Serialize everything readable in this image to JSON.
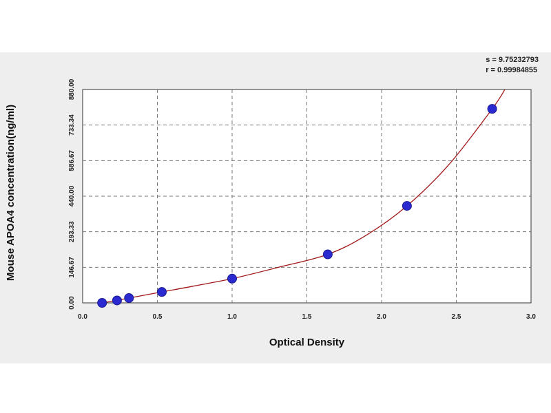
{
  "stats": {
    "s_line": "s = 9.75232793",
    "r_line": "r = 0.99984855"
  },
  "chart_data": {
    "type": "scatter",
    "title": "",
    "xlabel": "Optical Density",
    "ylabel": "Mouse APOA4 concentration(ng/ml)",
    "xlim": [
      0.0,
      3.0
    ],
    "ylim": [
      0.0,
      880.0
    ],
    "x_ticks": [
      0.0,
      0.5,
      1.0,
      1.5,
      2.0,
      2.5,
      3.0
    ],
    "x_tick_labels": [
      "0.0",
      "0.5",
      "1.0",
      "1.5",
      "2.0",
      "2.5",
      "3.0"
    ],
    "y_ticks": [
      0.0,
      146.67,
      293.33,
      440.0,
      586.67,
      733.34,
      880.0
    ],
    "y_tick_labels": [
      "0.00",
      "146.67",
      "293.33",
      "440.00",
      "586.67",
      "733.34",
      "880.00"
    ],
    "grid": true,
    "points": [
      {
        "x": 0.13,
        "y": 0
      },
      {
        "x": 0.23,
        "y": 10
      },
      {
        "x": 0.31,
        "y": 20
      },
      {
        "x": 0.53,
        "y": 45
      },
      {
        "x": 1.0,
        "y": 100
      },
      {
        "x": 1.64,
        "y": 200
      },
      {
        "x": 2.17,
        "y": 400
      },
      {
        "x": 2.74,
        "y": 800
      }
    ],
    "curve": [
      {
        "x": 0.05,
        "y": -8
      },
      {
        "x": 0.13,
        "y": 0
      },
      {
        "x": 0.23,
        "y": 10
      },
      {
        "x": 0.31,
        "y": 20
      },
      {
        "x": 0.53,
        "y": 45
      },
      {
        "x": 0.75,
        "y": 70
      },
      {
        "x": 1.0,
        "y": 100
      },
      {
        "x": 1.3,
        "y": 145
      },
      {
        "x": 1.64,
        "y": 200
      },
      {
        "x": 1.9,
        "y": 280
      },
      {
        "x": 2.17,
        "y": 400
      },
      {
        "x": 2.45,
        "y": 570
      },
      {
        "x": 2.74,
        "y": 800
      },
      {
        "x": 2.83,
        "y": 885
      }
    ],
    "colors": {
      "point": "#2a2ad0",
      "curve": "#a01818",
      "grid": "#777777",
      "plot_bg": "#ffffff",
      "panel_bg": "#eeeeee"
    }
  }
}
